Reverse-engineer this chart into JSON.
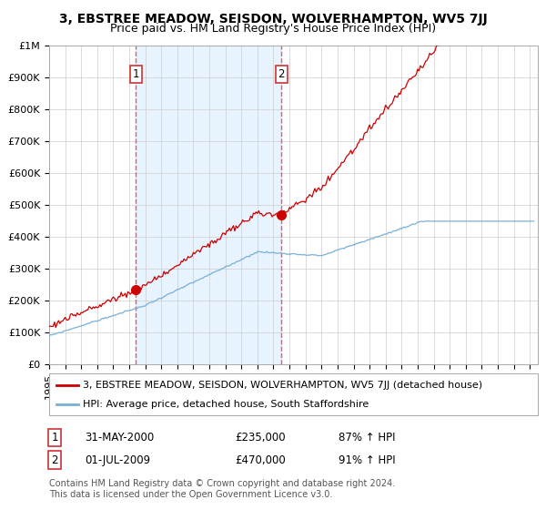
{
  "title": "3, EBSTREE MEADOW, SEISDON, WOLVERHAMPTON, WV5 7JJ",
  "subtitle": "Price paid vs. HM Land Registry's House Price Index (HPI)",
  "ylabel_ticks": [
    "£0",
    "£100K",
    "£200K",
    "£300K",
    "£400K",
    "£500K",
    "£600K",
    "£700K",
    "£800K",
    "£900K",
    "£1M"
  ],
  "ytick_values": [
    0,
    100000,
    200000,
    300000,
    400000,
    500000,
    600000,
    700000,
    800000,
    900000,
    1000000
  ],
  "ylim": [
    0,
    1000000
  ],
  "xlim_start": 1995.0,
  "xlim_end": 2025.5,
  "xtick_years": [
    1995,
    1996,
    1997,
    1998,
    1999,
    2000,
    2001,
    2002,
    2003,
    2004,
    2005,
    2006,
    2007,
    2008,
    2009,
    2010,
    2011,
    2012,
    2013,
    2014,
    2015,
    2016,
    2017,
    2018,
    2019,
    2020,
    2021,
    2022,
    2023,
    2024,
    2025
  ],
  "sale1_date": 2000.41,
  "sale1_price": 235000,
  "sale1_label": "1",
  "sale2_date": 2009.5,
  "sale2_price": 470000,
  "sale2_label": "2",
  "red_line_color": "#cc0000",
  "blue_line_color": "#7ab0d4",
  "vline_color": "#e06060",
  "shade_color": "#ddeeff",
  "background_color": "#ffffff",
  "grid_color": "#cccccc",
  "legend_line1": "3, EBSTREE MEADOW, SEISDON, WOLVERHAMPTON, WV5 7JJ (detached house)",
  "legend_line2": "HPI: Average price, detached house, South Staffordshire",
  "table_row1": [
    "1",
    "31-MAY-2000",
    "£235,000",
    "87% ↑ HPI"
  ],
  "table_row2": [
    "2",
    "01-JUL-2009",
    "£470,000",
    "91% ↑ HPI"
  ],
  "footnote": "Contains HM Land Registry data © Crown copyright and database right 2024.\nThis data is licensed under the Open Government Licence v3.0.",
  "title_fontsize": 10,
  "subtitle_fontsize": 9,
  "tick_fontsize": 8,
  "legend_fontsize": 8,
  "table_fontsize": 8.5,
  "footnote_fontsize": 7
}
